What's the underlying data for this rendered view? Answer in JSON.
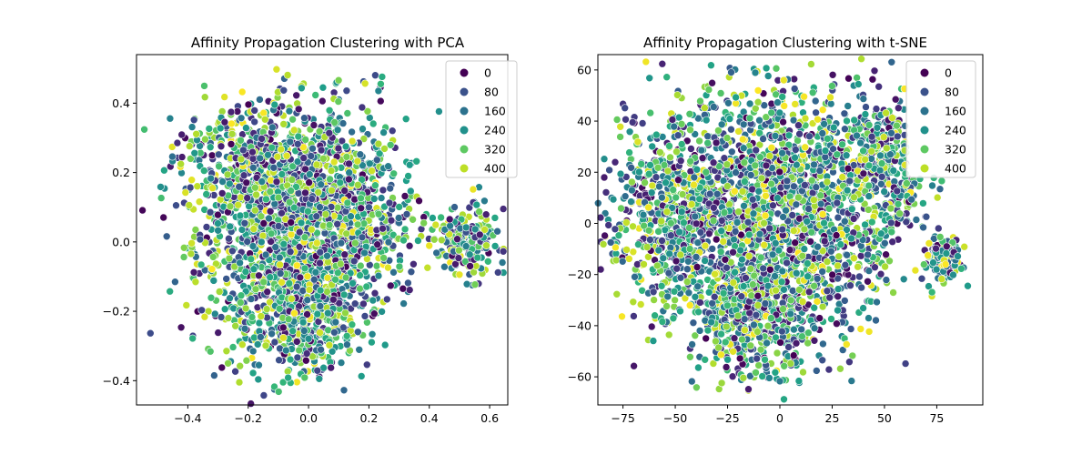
{
  "colors": {
    "colormap": "viridis",
    "legend_colors": [
      "#440154",
      "#3b528b",
      "#2c728e",
      "#21918c",
      "#5ec962",
      "#bddf26"
    ]
  },
  "chart_data": [
    {
      "type": "scatter",
      "title": "Affinity Propagation Clustering with PCA",
      "xlim": [
        -0.57,
        0.66
      ],
      "ylim": [
        -0.47,
        0.54
      ],
      "xticks": [
        -0.4,
        -0.2,
        0.0,
        0.2,
        0.4,
        0.6
      ],
      "xtick_labels": [
        "−0.4",
        "−0.2",
        "0.0",
        "0.2",
        "0.4",
        "0.6"
      ],
      "yticks": [
        -0.4,
        -0.2,
        0.0,
        0.2,
        0.4
      ],
      "ytick_labels": [
        "−0.4",
        "−0.2",
        "0.0",
        "0.2",
        "0.4"
      ],
      "xlabel": "",
      "ylabel": "",
      "grid": false,
      "legend": {
        "placement": "top-right",
        "entries": [
          {
            "label": "0",
            "value": 0
          },
          {
            "label": "80",
            "value": 80
          },
          {
            "label": "160",
            "value": 160
          },
          {
            "label": "240",
            "value": 240
          },
          {
            "label": "320",
            "value": 320
          },
          {
            "label": "400",
            "value": 400
          }
        ]
      },
      "hue_range": [
        0,
        440
      ],
      "clusters": [
        {
          "cx": -0.05,
          "cy": 0.05,
          "sx": 0.16,
          "sy": 0.17,
          "n": 1500
        },
        {
          "cx": -0.02,
          "cy": -0.22,
          "sx": 0.12,
          "sy": 0.08,
          "n": 400
        },
        {
          "cx": 0.52,
          "cy": 0.0,
          "sx": 0.06,
          "sy": 0.05,
          "n": 200
        },
        {
          "cx": -0.2,
          "cy": 0.25,
          "sx": 0.12,
          "sy": 0.08,
          "n": 250
        },
        {
          "cx": 0.15,
          "cy": 0.1,
          "sx": 0.1,
          "sy": 0.12,
          "n": 350
        }
      ]
    },
    {
      "type": "scatter",
      "title": "Affinity Propagation Clustering with t-SNE",
      "xlim": [
        -87,
        97
      ],
      "ylim": [
        -71,
        66
      ],
      "xticks": [
        -75,
        -50,
        -25,
        0,
        25,
        50,
        75
      ],
      "xtick_labels": [
        "−75",
        "−50",
        "−25",
        "0",
        "25",
        "50",
        "75"
      ],
      "yticks": [
        -60,
        -40,
        -20,
        0,
        20,
        40,
        60
      ],
      "ytick_labels": [
        "−60",
        "−40",
        "−20",
        "0",
        "20",
        "40",
        "60"
      ],
      "xlabel": "",
      "ylabel": "",
      "grid": false,
      "legend": {
        "placement": "top-right",
        "entries": [
          {
            "label": "0",
            "value": 0
          },
          {
            "label": "80",
            "value": 80
          },
          {
            "label": "160",
            "value": 160
          },
          {
            "label": "240",
            "value": 240
          },
          {
            "label": "320",
            "value": 320
          },
          {
            "label": "400",
            "value": 400
          }
        ]
      },
      "hue_range": [
        0,
        440
      ],
      "clusters": [
        {
          "cx": -10,
          "cy": 5,
          "sx": 30,
          "sy": 24,
          "n": 1700
        },
        {
          "cx": -10,
          "cy": -35,
          "sx": 16,
          "sy": 12,
          "n": 500
        },
        {
          "cx": 52,
          "cy": 25,
          "sx": 8,
          "sy": 12,
          "n": 250
        },
        {
          "cx": 79,
          "cy": -13,
          "sx": 4,
          "sy": 4,
          "n": 150
        },
        {
          "cx": -55,
          "cy": 5,
          "sx": 14,
          "sy": 18,
          "n": 350
        },
        {
          "cx": 25,
          "cy": 10,
          "sx": 20,
          "sy": 25,
          "n": 400
        }
      ]
    }
  ]
}
